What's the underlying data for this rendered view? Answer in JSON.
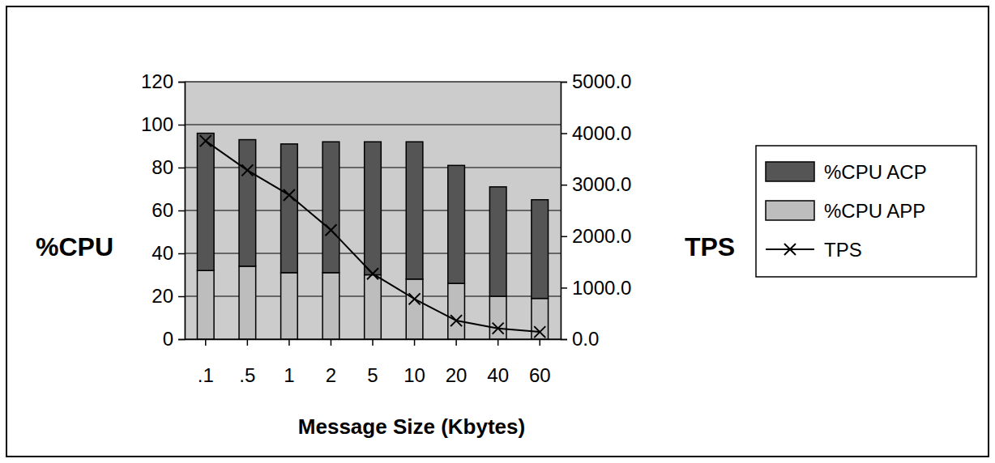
{
  "chart_data": {
    "type": "bar",
    "stacked": true,
    "x_label": "Message Size (Kbytes)",
    "y_label": "%CPU",
    "y2_label": "TPS",
    "categories": [
      ".1",
      ".5",
      "1",
      "2",
      "5",
      "10",
      "20",
      "40",
      "60"
    ],
    "series": [
      {
        "name": "%CPU ACP",
        "type": "bar",
        "color": "#555555",
        "values": [
          64,
          59,
          60,
          61,
          62,
          64,
          55,
          51,
          46
        ]
      },
      {
        "name": "%CPU APP",
        "type": "bar",
        "color": "#bdbdbd",
        "values": [
          32,
          34,
          31,
          31,
          30,
          28,
          26,
          20,
          19
        ]
      },
      {
        "name": "TPS",
        "type": "line",
        "axis": "y2",
        "color": "#000000",
        "marker": "x",
        "line_style": "solid",
        "values": [
          3850,
          3280,
          2800,
          2120,
          1270,
          780,
          360,
          210,
          140
        ]
      }
    ],
    "ylim": [
      0,
      120
    ],
    "yticks": [
      0,
      20,
      40,
      60,
      80,
      100,
      120
    ],
    "y2lim": [
      0,
      5000
    ],
    "y2ticks": [
      {
        "value": 0,
        "label": "0.0"
      },
      {
        "value": 1000,
        "label": "1000.0"
      },
      {
        "value": 2000,
        "label": "2000.0"
      },
      {
        "value": 3000,
        "label": "3000.0"
      },
      {
        "value": 4000,
        "label": "4000.0"
      },
      {
        "value": 5000,
        "label": "5000.0"
      }
    ],
    "grid": true,
    "legend": "right"
  }
}
